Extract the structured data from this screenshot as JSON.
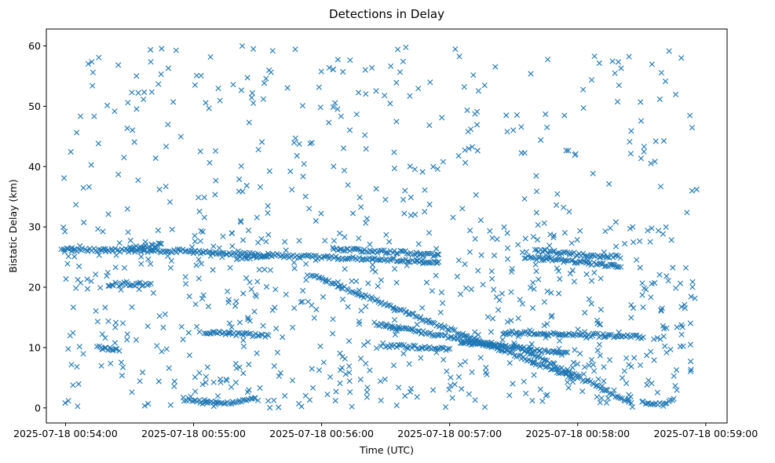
{
  "chart_data": {
    "type": "scatter",
    "title": "Detections in Delay",
    "xlabel": "Time (UTC)",
    "ylabel": "Bistatic Delay (km)",
    "marker": "x",
    "color": "#1f77b4",
    "grid": false,
    "xlim_seconds_after_00_54_00": [
      -9,
      310
    ],
    "ylim": [
      -2.5,
      62.8
    ],
    "x_ticks": [
      {
        "label": "2025-07-18 00:54:00",
        "value": "00:54:00"
      },
      {
        "label": "2025-07-18 00:55:00",
        "value": "00:55:00"
      },
      {
        "label": "2025-07-18 00:56:00",
        "value": "00:56:00"
      },
      {
        "label": "2025-07-18 00:57:00",
        "value": "00:57:00"
      },
      {
        "label": "2025-07-18 00:58:00",
        "value": "00:58:00"
      },
      {
        "label": "2025-07-18 00:59:00",
        "value": "00:59:00"
      }
    ],
    "y_ticks": [
      0,
      10,
      20,
      30,
      40,
      50,
      60
    ],
    "x_range_time": [
      "00:53:51",
      "00:59:10"
    ],
    "data_time_range": [
      "00:53:58",
      "00:58:56"
    ],
    "tracks": [
      {
        "kind": "line",
        "t_start": "00:53:58",
        "t_end": "00:55:00",
        "delay_start": 26.2,
        "delay_end": 26.0
      },
      {
        "kind": "line",
        "t_start": "00:55:00",
        "t_end": "00:56:55",
        "delay_start": 25.8,
        "delay_end": 24.2
      },
      {
        "kind": "line",
        "t_start": "00:56:05",
        "t_end": "00:56:55",
        "delay_start": 26.4,
        "delay_end": 25.4
      },
      {
        "kind": "line",
        "t_start": "00:55:55",
        "t_end": "00:57:58",
        "delay_start": 22.0,
        "delay_end": 5.0
      },
      {
        "kind": "line",
        "t_start": "00:57:30",
        "t_end": "00:58:25",
        "delay_start": 10.5,
        "delay_end": 0.8
      },
      {
        "kind": "line",
        "t_start": "00:57:40",
        "t_end": "00:58:20",
        "delay_start": 26.0,
        "delay_end": 25.0
      },
      {
        "kind": "line",
        "t_start": "00:57:35",
        "t_end": "00:58:20",
        "delay_start": 25.0,
        "delay_end": 23.5
      },
      {
        "kind": "line",
        "t_start": "00:55:05",
        "t_end": "00:55:35",
        "delay_start": 12.5,
        "delay_end": 12.0
      },
      {
        "kind": "line",
        "t_start": "00:57:25",
        "t_end": "00:58:30",
        "delay_start": 12.5,
        "delay_end": 11.8
      },
      {
        "kind": "line",
        "t_start": "00:56:25",
        "t_end": "00:57:25",
        "delay_start": 14.0,
        "delay_end": 10.0
      },
      {
        "kind": "line",
        "t_start": "00:57:05",
        "t_end": "00:57:55",
        "delay_start": 11.0,
        "delay_end": 9.0
      },
      {
        "kind": "line",
        "t_start": "00:56:30",
        "t_end": "00:57:00",
        "delay_start": 10.3,
        "delay_end": 9.8
      },
      {
        "kind": "line",
        "t_start": "00:54:15",
        "t_end": "00:54:25",
        "delay_start": 10.0,
        "delay_end": 9.5
      },
      {
        "kind": "line",
        "t_start": "00:54:20",
        "t_end": "00:54:40",
        "delay_start": 20.5,
        "delay_end": 20.5
      },
      {
        "kind": "line",
        "t_start": "00:54:30",
        "t_end": "00:54:45",
        "delay_start": 26.5,
        "delay_end": 27.0
      },
      {
        "kind": "line",
        "t_start": "00:55:20",
        "t_end": "00:55:35",
        "delay_start": 24.8,
        "delay_end": 25.3
      },
      {
        "kind": "curve",
        "t_start": "00:54:55",
        "t_end": "00:55:30",
        "delay_start": 1.5,
        "delay_end": 1.5,
        "delay_min": 0.8
      },
      {
        "kind": "curve",
        "t_start": "00:58:30",
        "t_end": "00:58:45",
        "delay_start": 1.0,
        "delay_end": 1.5,
        "delay_min": 0.5
      }
    ],
    "scattered_detections": {
      "delay_range": [
        0,
        60
      ],
      "approx_count": 900,
      "density_above_30km": 0.25
    }
  }
}
